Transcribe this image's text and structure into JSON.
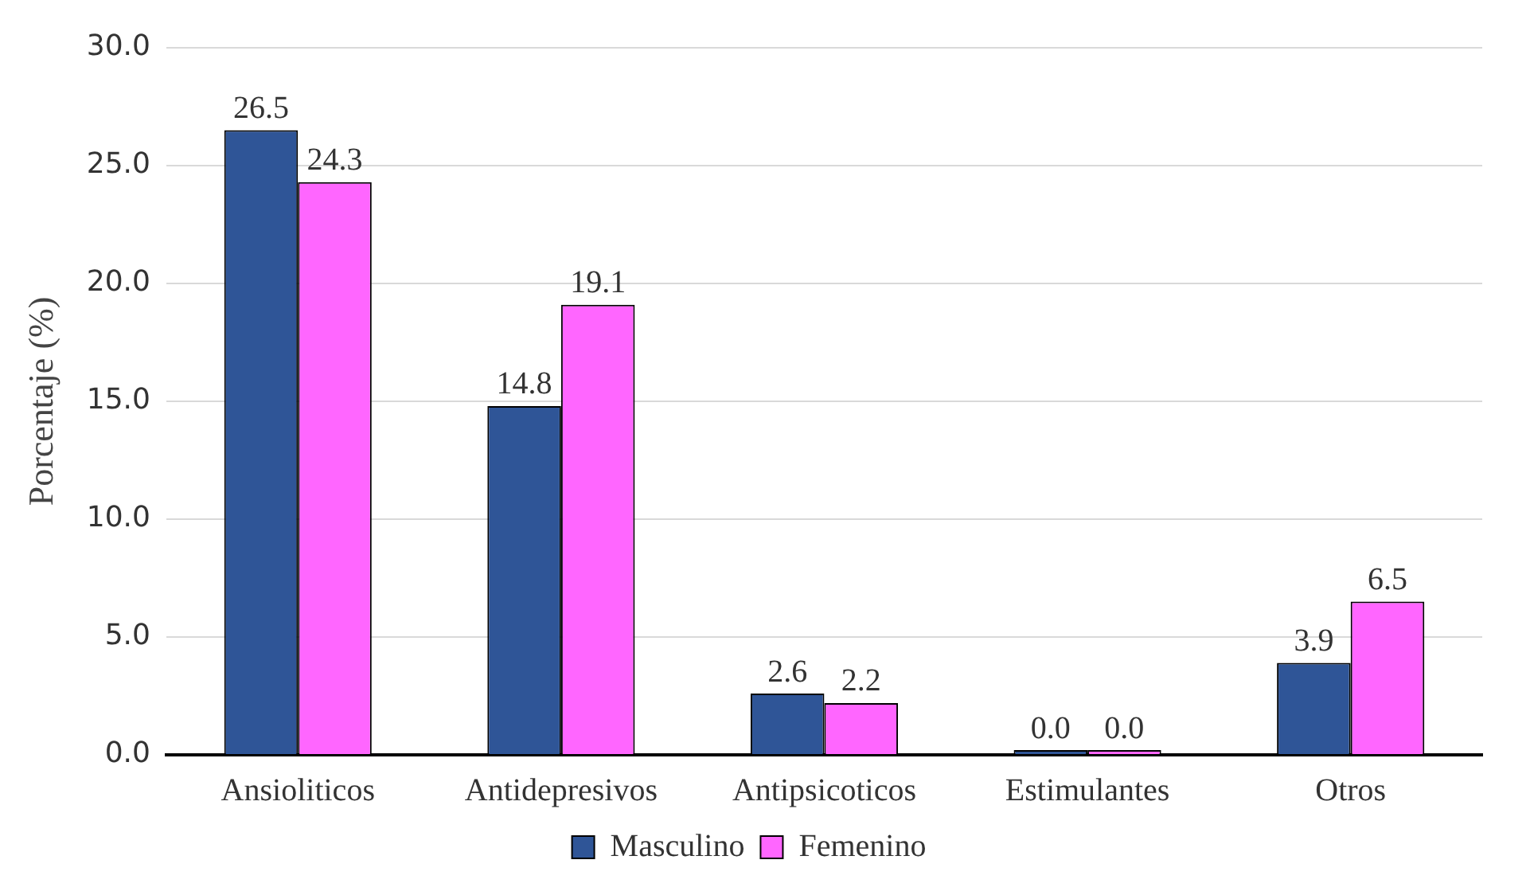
{
  "chart_data": {
    "type": "bar",
    "ylabel": "Porcentaje (%)",
    "categories": [
      "Ansioliticos",
      "Antidepresivos",
      "Antipsicoticos",
      "Estimulantes",
      "Otros"
    ],
    "series": [
      {
        "name": "Masculino",
        "color": "#2f5597",
        "values": [
          26.5,
          14.8,
          2.6,
          0,
          3.9
        ],
        "value_labels": [
          "26.5",
          "14.8",
          "2.6",
          "0.0",
          "3.9"
        ]
      },
      {
        "name": "Femenino",
        "color": "#ff66ff",
        "values": [
          24.3,
          19.1,
          2.2,
          0,
          6.5
        ],
        "value_labels": [
          "24.3",
          "19.1",
          "2.2",
          "0.0",
          "6.5"
        ]
      }
    ],
    "ylim": [
      0,
      30
    ],
    "yticks": [
      {
        "value": 0,
        "label": "0.0"
      },
      {
        "value": 5,
        "label": "5.0"
      },
      {
        "value": 10,
        "label": "10.0"
      },
      {
        "value": 15,
        "label": "15.0"
      },
      {
        "value": 20,
        "label": "20.0"
      },
      {
        "value": 25,
        "label": "25.0"
      },
      {
        "value": 30,
        "label": "30.0"
      }
    ],
    "grid": "y",
    "legend": "bottom"
  }
}
